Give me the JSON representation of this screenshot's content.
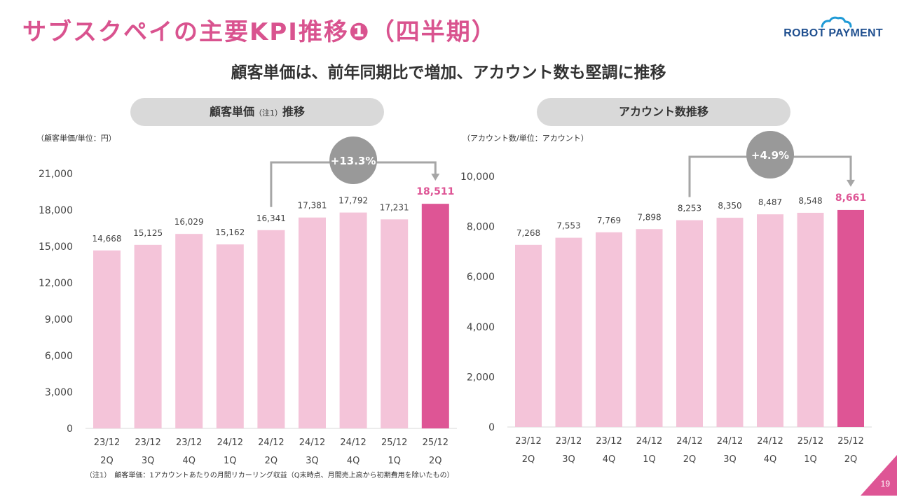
{
  "header": {
    "title": "サブスクペイの主要KPI推移❶（四半期）",
    "logo_text": "ROBOT PAYMENT",
    "subtitle": "顧客単価は、前年同期比で増加、アカウント数も堅調に推移"
  },
  "panels": {
    "left_title": "顧客単価",
    "left_title_note": "（注1）",
    "left_title_suffix": "推移",
    "left_unit": "（顧客単価/単位：円）",
    "right_title": "アカウント数推移",
    "right_unit": "（アカウント数/単位：アカウント）"
  },
  "colors": {
    "bar": "#f4c4d9",
    "highlight": "#de5595",
    "bubble": "#999999",
    "arrow": "#a6a6a6",
    "title": "#d9538f"
  },
  "chart_data": [
    {
      "type": "bar",
      "categories": [
        "23/12\n2Q",
        "23/12\n3Q",
        "23/12\n4Q",
        "24/12\n1Q",
        "24/12\n2Q",
        "24/12\n3Q",
        "24/12\n4Q",
        "25/12\n1Q",
        "25/12\n2Q"
      ],
      "values": [
        14668,
        15125,
        16029,
        15162,
        16341,
        17381,
        17792,
        17231,
        18511
      ],
      "value_labels": [
        "14,668",
        "15,125",
        "16,029",
        "15,162",
        "16,341",
        "17,381",
        "17,792",
        "17,231",
        "18,511"
      ],
      "yticks": [
        "0",
        "3,000",
        "6,000",
        "9,000",
        "12,000",
        "15,000",
        "18,000",
        "21,000"
      ],
      "ylim": [
        0,
        21000
      ],
      "highlight_index": 8,
      "growth": "+13.3%",
      "growth_from_index": 4,
      "growth_to_index": 8
    },
    {
      "type": "bar",
      "categories": [
        "23/12\n2Q",
        "23/12\n3Q",
        "23/12\n4Q",
        "24/12\n1Q",
        "24/12\n2Q",
        "24/12\n3Q",
        "24/12\n4Q",
        "25/12\n1Q",
        "25/12\n2Q"
      ],
      "values": [
        7268,
        7553,
        7769,
        7898,
        8253,
        8350,
        8487,
        8548,
        8661
      ],
      "value_labels": [
        "7,268",
        "7,553",
        "7,769",
        "7,898",
        "8,253",
        "8,350",
        "8,487",
        "8,548",
        "8,661"
      ],
      "yticks": [
        "0",
        "2,000",
        "4,000",
        "6,000",
        "8,000",
        "10,000"
      ],
      "ylim": [
        0,
        10000
      ],
      "highlight_index": 8,
      "growth": "+4.9%",
      "growth_from_index": 4,
      "growth_to_index": 8
    }
  ],
  "footer": {
    "note": "（注1）　顧客単価：1アカウントあたりの月間リカーリング収益（Q末時点、月間売上高から初期費用を除いたもの）",
    "page": "19"
  }
}
